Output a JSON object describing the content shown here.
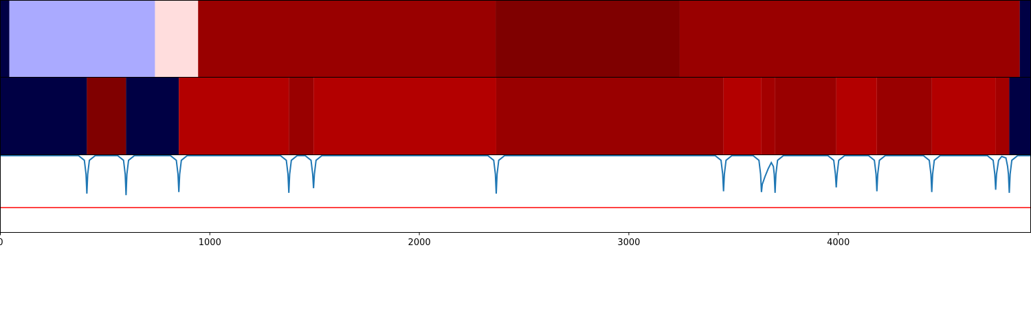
{
  "chart_data": {
    "type": "segmentation",
    "xlim": [
      0,
      4918
    ],
    "xticks": [
      0,
      1000,
      2000,
      3000,
      4000
    ],
    "rows": [
      {
        "segments": [
          {
            "start": 0,
            "end": 43,
            "color": "#000044"
          },
          {
            "start": 43,
            "end": 738,
            "color": "#aaaaff"
          },
          {
            "start": 738,
            "end": 944,
            "color": "#ffdddd"
          },
          {
            "start": 944,
            "end": 2364,
            "color": "#990000"
          },
          {
            "start": 2364,
            "end": 3243,
            "color": "#7f0000"
          },
          {
            "start": 3243,
            "end": 4866,
            "color": "#990000"
          },
          {
            "start": 4866,
            "end": 4918,
            "color": "#000044"
          }
        ]
      },
      {
        "segments": [
          {
            "start": 0,
            "end": 413,
            "color": "#000044"
          },
          {
            "start": 413,
            "end": 600,
            "color": "#800000"
          },
          {
            "start": 600,
            "end": 852,
            "color": "#000044"
          },
          {
            "start": 852,
            "end": 1377,
            "color": "#b30000"
          },
          {
            "start": 1377,
            "end": 1495,
            "color": "#990000"
          },
          {
            "start": 1495,
            "end": 2367,
            "color": "#b30000"
          },
          {
            "start": 2367,
            "end": 3452,
            "color": "#990000"
          },
          {
            "start": 3452,
            "end": 3633,
            "color": "#b30000"
          },
          {
            "start": 3633,
            "end": 3698,
            "color": "#a30000"
          },
          {
            "start": 3698,
            "end": 3990,
            "color": "#990000"
          },
          {
            "start": 3990,
            "end": 4184,
            "color": "#b30000"
          },
          {
            "start": 4184,
            "end": 4446,
            "color": "#990000"
          },
          {
            "start": 4446,
            "end": 4751,
            "color": "#b30000"
          },
          {
            "start": 4751,
            "end": 4816,
            "color": "#a30000"
          },
          {
            "start": 4816,
            "end": 4918,
            "color": "#000044"
          }
        ]
      }
    ],
    "ylim": [
      0,
      1
    ],
    "line": {
      "color": "#1f77b4",
      "x": [
        0,
        373,
        401,
        409,
        413,
        417,
        425,
        453,
        560,
        588,
        596,
        600,
        604,
        612,
        640,
        812,
        840,
        848,
        852,
        856,
        864,
        892,
        1337,
        1365,
        1373,
        1377,
        1381,
        1389,
        1417,
        1455,
        1483,
        1491,
        1495,
        1499,
        1507,
        1535,
        2327,
        2355,
        2363,
        2367,
        2371,
        2379,
        2407,
        3412,
        3440,
        3448,
        3452,
        3456,
        3464,
        3492,
        3593,
        3621,
        3629,
        3633,
        3637,
        3650,
        3665,
        3680,
        3690,
        3694,
        3698,
        3702,
        3710,
        3738,
        3950,
        3978,
        3986,
        3990,
        3994,
        4002,
        4030,
        4144,
        4172,
        4180,
        4184,
        4188,
        4196,
        4224,
        4406,
        4434,
        4442,
        4446,
        4450,
        4458,
        4486,
        4711,
        4739,
        4747,
        4751,
        4755,
        4765,
        4780,
        4800,
        4808,
        4812,
        4816,
        4820,
        4828,
        4856,
        4918
      ],
      "values": [
        0.99,
        0.99,
        0.93,
        0.75,
        0.5,
        0.75,
        0.93,
        0.99,
        0.99,
        0.93,
        0.75,
        0.48,
        0.75,
        0.93,
        0.99,
        0.99,
        0.93,
        0.75,
        0.52,
        0.75,
        0.93,
        0.99,
        0.99,
        0.93,
        0.75,
        0.51,
        0.75,
        0.93,
        0.99,
        0.99,
        0.93,
        0.75,
        0.57,
        0.75,
        0.93,
        0.99,
        0.99,
        0.93,
        0.75,
        0.5,
        0.75,
        0.93,
        0.99,
        0.99,
        0.93,
        0.75,
        0.53,
        0.75,
        0.93,
        0.99,
        0.99,
        0.93,
        0.75,
        0.52,
        0.62,
        0.72,
        0.82,
        0.9,
        0.85,
        0.75,
        0.51,
        0.75,
        0.93,
        0.99,
        0.99,
        0.93,
        0.75,
        0.58,
        0.75,
        0.93,
        0.99,
        0.99,
        0.93,
        0.75,
        0.53,
        0.75,
        0.93,
        0.99,
        0.99,
        0.93,
        0.75,
        0.52,
        0.75,
        0.93,
        0.99,
        0.99,
        0.93,
        0.75,
        0.55,
        0.75,
        0.93,
        0.98,
        0.96,
        0.85,
        0.75,
        0.51,
        0.75,
        0.93,
        0.99,
        0.99
      ]
    },
    "hline": {
      "value": 0.32,
      "color": "#ff0000"
    }
  }
}
